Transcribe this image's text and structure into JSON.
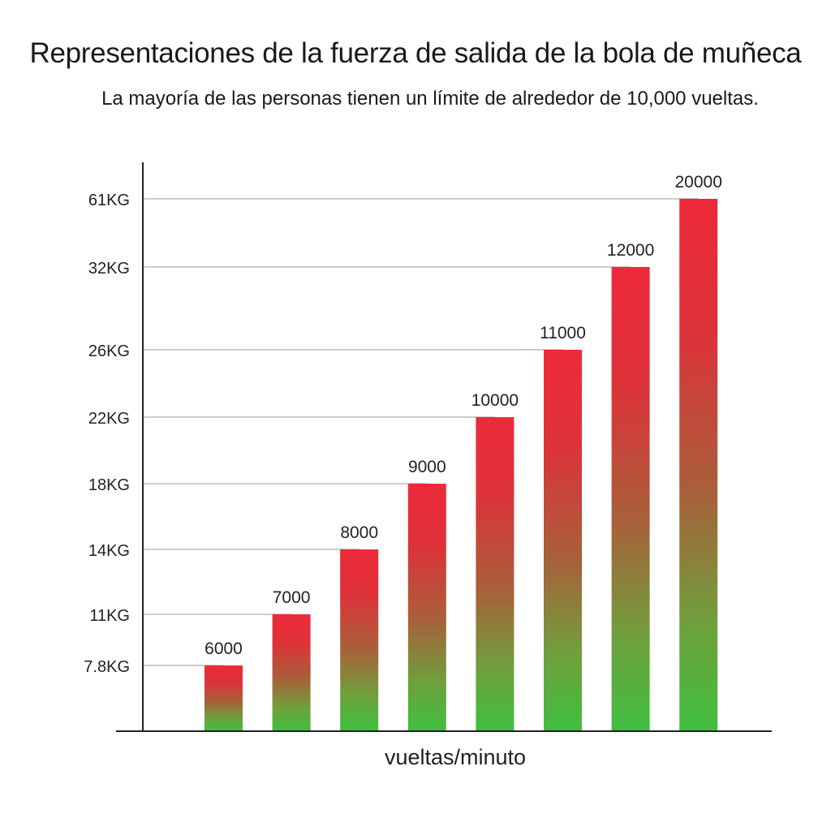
{
  "chart_data": {
    "type": "bar",
    "title": "Representaciones de la fuerza de salida de la bola de muñeca",
    "subtitle": "La mayoría de las personas tienen un límite de alrededor de 10,000 vueltas.",
    "xlabel": "vueltas/minuto",
    "ylabel": "",
    "categories": [
      "6000",
      "7000",
      "8000",
      "9000",
      "10000",
      "11000",
      "12000",
      "20000"
    ],
    "values": [
      7.8,
      11,
      14,
      18,
      22,
      26,
      32,
      61
    ],
    "y_tick_labels": [
      "7.8KG",
      "11KG",
      "14KG",
      "18KG",
      "22KG",
      "26KG",
      "32KG",
      "61KG"
    ],
    "y_scale": "categorical (evenly spaced, non-linear)",
    "grid": true,
    "legend": "none",
    "colors": {
      "bar_top": "#ee2a3a",
      "bar_mid": "#b05a3a",
      "bar_bottom": "#3fbf3f",
      "gridline": "#9a9a9a",
      "axis": "#222222"
    }
  }
}
